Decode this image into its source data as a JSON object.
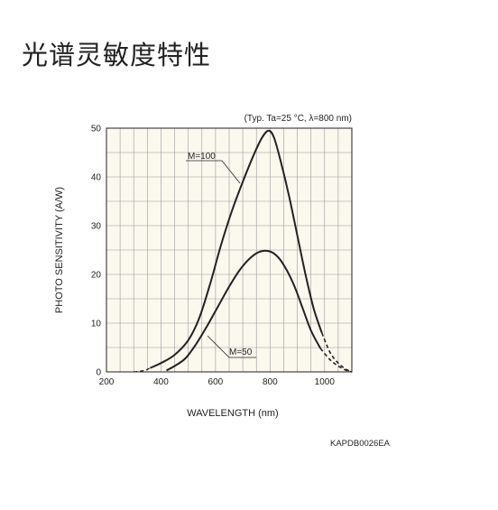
{
  "page": {
    "title": "光谱灵敏度特性"
  },
  "chart_data": {
    "type": "line",
    "title": "",
    "xlabel": "WAVELENGTH (nm)",
    "ylabel": "PHOTO SENSITIVITY (A/W)",
    "xlim": [
      200,
      1100
    ],
    "ylim": [
      0,
      50
    ],
    "xticks": [
      200,
      400,
      600,
      800,
      1000
    ],
    "yticks": [
      0,
      10,
      20,
      30,
      40,
      50
    ],
    "grid": true,
    "condition_note": "(Typ. Ta=25 °C, λ=800 nm)",
    "figure_code": "KAPDB0026EA",
    "series": [
      {
        "name": "M=100",
        "label": "M=100",
        "solid": [
          [
            360,
            0.8
          ],
          [
            400,
            1.8
          ],
          [
            450,
            3.5
          ],
          [
            500,
            6.5
          ],
          [
            540,
            11
          ],
          [
            580,
            18
          ],
          [
            620,
            26
          ],
          [
            660,
            33
          ],
          [
            700,
            39
          ],
          [
            740,
            44.5
          ],
          [
            770,
            48
          ],
          [
            795,
            49.5
          ],
          [
            815,
            48
          ],
          [
            840,
            43
          ],
          [
            870,
            36
          ],
          [
            900,
            28
          ],
          [
            930,
            20
          ],
          [
            960,
            13
          ],
          [
            990,
            8
          ]
        ],
        "dashed": [
          [
            990,
            8
          ],
          [
            1020,
            4
          ],
          [
            1050,
            1.8
          ],
          [
            1080,
            0.5
          ],
          [
            1100,
            0
          ]
        ]
      },
      {
        "name": "M=50",
        "label": "M=50",
        "solid": [
          [
            420,
            0.3
          ],
          [
            450,
            1.2
          ],
          [
            490,
            2.8
          ],
          [
            530,
            5.8
          ],
          [
            570,
            9.5
          ],
          [
            610,
            13.5
          ],
          [
            650,
            17.5
          ],
          [
            690,
            21
          ],
          [
            730,
            23.5
          ],
          [
            765,
            24.7
          ],
          [
            800,
            24.7
          ],
          [
            830,
            23.5
          ],
          [
            860,
            21
          ],
          [
            890,
            17.5
          ],
          [
            920,
            13
          ],
          [
            950,
            8.5
          ],
          [
            985,
            4.8
          ]
        ],
        "dashed": [
          [
            985,
            4.8
          ],
          [
            1020,
            2.5
          ],
          [
            1050,
            1.2
          ],
          [
            1080,
            0.3
          ],
          [
            1100,
            0
          ]
        ]
      }
    ],
    "lead_in": [
      [
        300,
        0
      ],
      [
        340,
        0.3
      ],
      [
        360,
        0.8
      ]
    ]
  }
}
